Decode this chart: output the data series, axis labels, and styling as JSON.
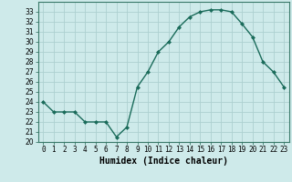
{
  "x": [
    0,
    1,
    2,
    3,
    4,
    5,
    6,
    7,
    8,
    9,
    10,
    11,
    12,
    13,
    14,
    15,
    16,
    17,
    18,
    19,
    20,
    21,
    22,
    23
  ],
  "y": [
    24,
    23,
    23,
    23,
    22,
    22,
    22,
    20.5,
    21.5,
    25.5,
    27,
    29,
    30,
    31.5,
    32.5,
    33,
    33.2,
    33.2,
    33,
    31.8,
    30.5,
    28,
    27,
    25.5
  ],
  "line_color": "#1a6b5a",
  "marker": "D",
  "marker_size": 2.0,
  "bg_color": "#ceeaea",
  "grid_color": "#add0d0",
  "xlabel": "Humidex (Indice chaleur)",
  "xlim": [
    -0.5,
    23.5
  ],
  "ylim": [
    20,
    34
  ],
  "yticks": [
    20,
    21,
    22,
    23,
    24,
    25,
    26,
    27,
    28,
    29,
    30,
    31,
    32,
    33
  ],
  "xticks": [
    0,
    1,
    2,
    3,
    4,
    5,
    6,
    7,
    8,
    9,
    10,
    11,
    12,
    13,
    14,
    15,
    16,
    17,
    18,
    19,
    20,
    21,
    22,
    23
  ],
  "xtick_labels": [
    "0",
    "1",
    "2",
    "3",
    "4",
    "5",
    "6",
    "7",
    "8",
    "9",
    "10",
    "11",
    "12",
    "13",
    "14",
    "15",
    "16",
    "17",
    "18",
    "19",
    "20",
    "21",
    "22",
    "23"
  ],
  "tick_fontsize": 5.5,
  "xlabel_fontsize": 7,
  "line_width": 1.0
}
